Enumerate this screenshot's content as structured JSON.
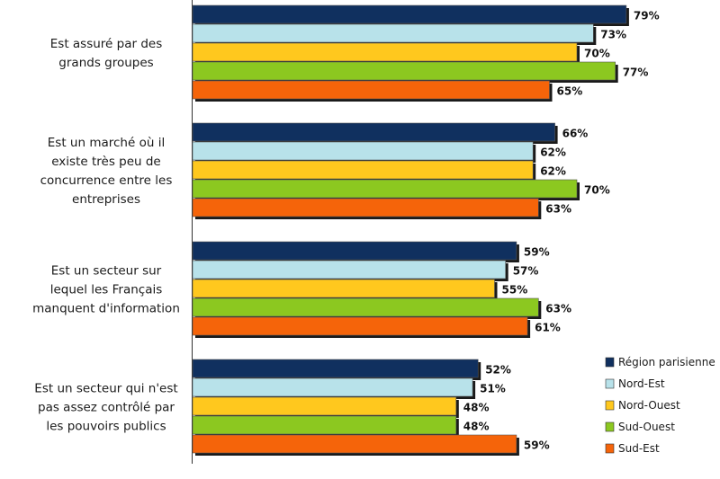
{
  "chart_data": {
    "type": "bar",
    "orientation": "horizontal",
    "categories": [
      [
        "Est assuré par des",
        "grands groupes"
      ],
      [
        "Est un marché où  il",
        "existe très peu de",
        "concurrence entre les",
        "entreprises"
      ],
      [
        "Est un secteur sur",
        "lequel les Français",
        "manquent d'information"
      ],
      [
        "Est un secteur qui n'est",
        "pas assez contrôlé par",
        "les pouvoirs publics"
      ]
    ],
    "series": [
      {
        "name": "Région parisienne",
        "color": "#10305f",
        "values": [
          79,
          66,
          59,
          52
        ]
      },
      {
        "name": "Nord-Est",
        "color": "#b8e2ea",
        "values": [
          73,
          62,
          57,
          51
        ]
      },
      {
        "name": "Nord-Ouest",
        "color": "#ffc81e",
        "values": [
          70,
          62,
          55,
          48
        ]
      },
      {
        "name": "Sud-Ouest",
        "color": "#8cc820",
        "values": [
          77,
          70,
          63,
          48
        ]
      },
      {
        "name": "Sud-Est",
        "color": "#f5640a",
        "values": [
          65,
          63,
          61,
          59
        ]
      }
    ],
    "value_suffix": "%",
    "xlim": [
      0,
      100
    ],
    "grid": false,
    "legend_position": "bottom-right",
    "title": "",
    "xlabel": "",
    "ylabel": ""
  }
}
